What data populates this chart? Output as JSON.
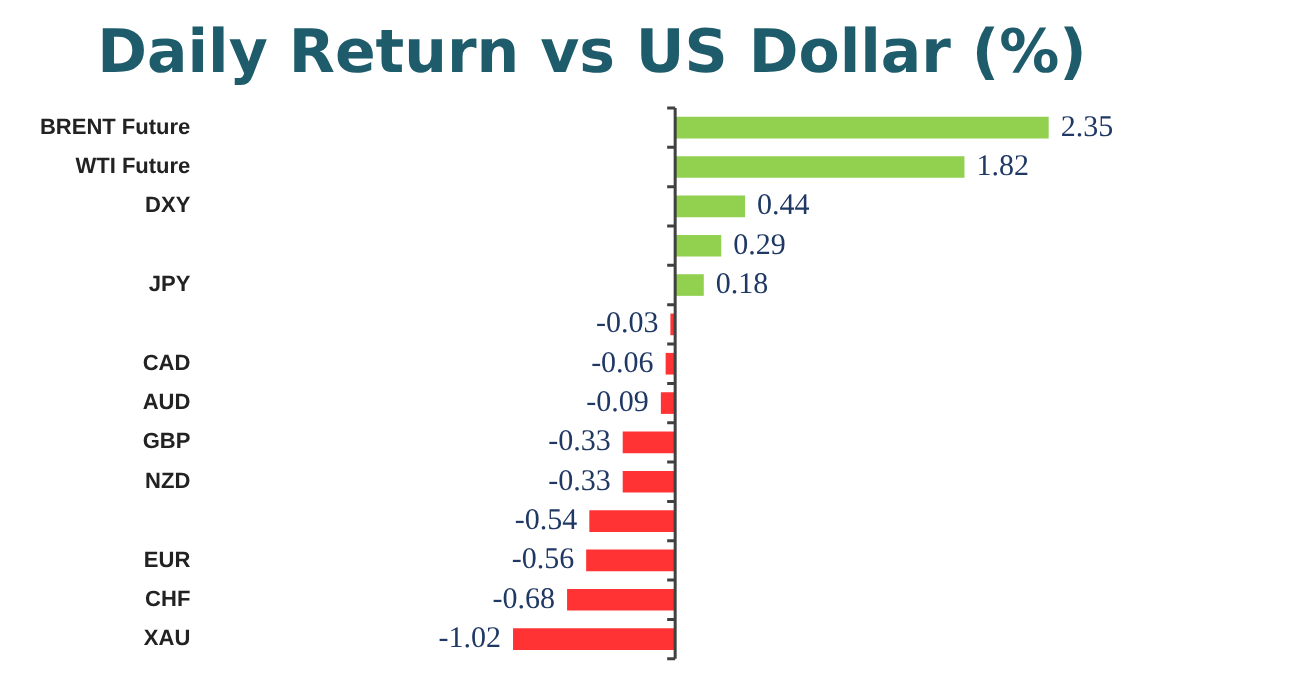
{
  "chart_data": {
    "type": "bar",
    "orientation": "horizontal",
    "title": "Daily Return vs US Dollar (%)",
    "categories": [
      "BRENT Future",
      "WTI Future",
      "DXY",
      null,
      "JPY",
      null,
      "CAD",
      "AUD",
      "GBP",
      "NZD",
      null,
      "EUR",
      "CHF",
      "XAU"
    ],
    "values": [
      2.35,
      1.82,
      0.44,
      0.29,
      0.18,
      -0.03,
      -0.06,
      -0.09,
      -0.33,
      -0.33,
      -0.54,
      -0.56,
      -0.68,
      -1.02
    ],
    "colors": [
      "#92d050",
      "#92d050",
      "#92d050",
      "#92d050",
      "#92d050",
      "#ff3333",
      "#ff3333",
      "#ff3333",
      "#ff3333",
      "#ff3333",
      "#ff3333",
      "#ff3333",
      "#ff3333",
      "#ff3333"
    ],
    "data_labels": true
  }
}
